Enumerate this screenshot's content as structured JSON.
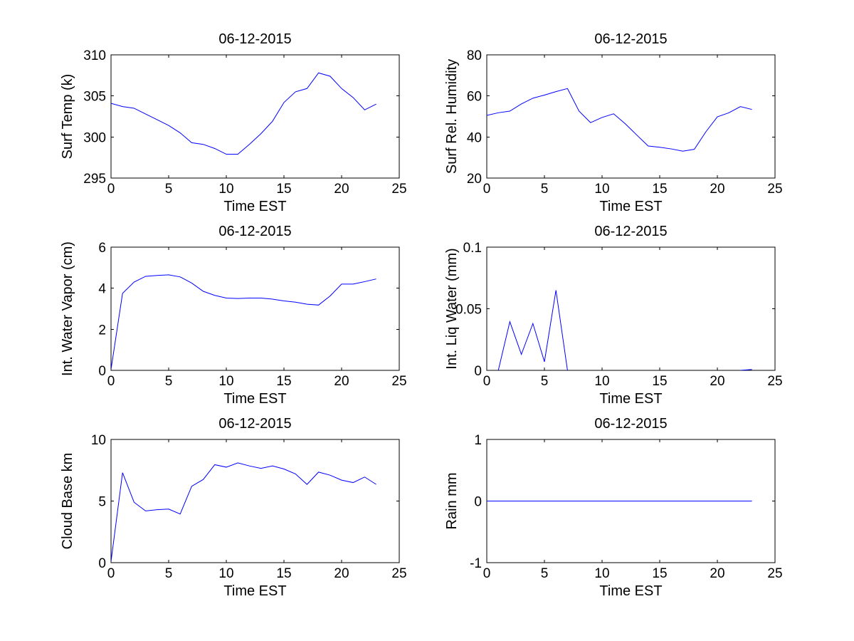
{
  "figure": {
    "background": "#ffffff",
    "line_color": "#0000ff",
    "axes_color": "#000000"
  },
  "chart_data": [
    {
      "id": "surf-temp",
      "type": "line",
      "title": "06-12-2015",
      "xlabel": "Time EST",
      "ylabel": "Surf Temp (k)",
      "xlim": [
        0,
        25
      ],
      "ylim": [
        295,
        310
      ],
      "xticks": [
        0,
        5,
        10,
        15,
        20,
        25
      ],
      "yticks": [
        295,
        300,
        305,
        310
      ],
      "ytick_labels": [
        "295",
        "300",
        "305",
        "310"
      ],
      "grid": false,
      "x": [
        0,
        1,
        2,
        3,
        4,
        5,
        6,
        7,
        8,
        9,
        10,
        11,
        12,
        13,
        14,
        15,
        16,
        17,
        18,
        19,
        20,
        21,
        22,
        23
      ],
      "y": [
        304.1,
        303.7,
        303.5,
        302.8,
        302.1,
        301.4,
        300.5,
        299.3,
        299.1,
        298.6,
        297.9,
        297.9,
        299.1,
        300.4,
        301.9,
        304.2,
        305.5,
        305.9,
        307.8,
        307.4,
        305.9,
        304.8,
        303.3,
        304.0
      ]
    },
    {
      "id": "surf-rel-humidity",
      "type": "line",
      "title": "06-12-2015",
      "xlabel": "Time EST",
      "ylabel": "Surf Rel. Humidity",
      "xlim": [
        0,
        25
      ],
      "ylim": [
        20,
        80
      ],
      "xticks": [
        0,
        5,
        10,
        15,
        20,
        25
      ],
      "yticks": [
        20,
        40,
        60,
        80
      ],
      "ytick_labels": [
        "20",
        "40",
        "60",
        "80"
      ],
      "grid": false,
      "x": [
        0,
        1,
        2,
        3,
        4,
        5,
        6,
        7,
        8,
        9,
        10,
        11,
        12,
        13,
        14,
        15,
        16,
        17,
        18,
        19,
        20,
        21,
        22,
        23
      ],
      "y": [
        50.5,
        51.8,
        52.6,
        56.1,
        58.9,
        60.4,
        62.1,
        63.6,
        52.6,
        47.0,
        49.5,
        51.3,
        46.5,
        41.0,
        35.6,
        35.0,
        34.2,
        33.1,
        34.0,
        42.5,
        49.8,
        51.8,
        54.8,
        53.4
      ]
    },
    {
      "id": "int-water-vapor",
      "type": "line",
      "title": "06-12-2015",
      "xlabel": "Time EST",
      "ylabel": "Int. Water Vapor (cm)",
      "xlim": [
        0,
        25
      ],
      "ylim": [
        0,
        6
      ],
      "xticks": [
        0,
        5,
        10,
        15,
        20,
        25
      ],
      "yticks": [
        0,
        2,
        4,
        6
      ],
      "ytick_labels": [
        "0",
        "2",
        "4",
        "6"
      ],
      "grid": false,
      "x": [
        0,
        1,
        2,
        3,
        4,
        5,
        6,
        7,
        8,
        9,
        10,
        11,
        12,
        13,
        14,
        15,
        16,
        17,
        18,
        19,
        20,
        21,
        22,
        23
      ],
      "y": [
        0.05,
        3.75,
        4.3,
        4.58,
        4.62,
        4.65,
        4.55,
        4.25,
        3.85,
        3.65,
        3.52,
        3.5,
        3.52,
        3.52,
        3.47,
        3.38,
        3.32,
        3.22,
        3.18,
        3.62,
        4.2,
        4.2,
        4.32,
        4.45
      ]
    },
    {
      "id": "int-liq-water",
      "type": "line",
      "title": "06-12-2015",
      "xlabel": "Time EST",
      "ylabel": "Int. Liq Water (mm)",
      "xlim": [
        0,
        25
      ],
      "ylim": [
        0,
        0.1
      ],
      "xticks": [
        0,
        5,
        10,
        15,
        20,
        25
      ],
      "yticks": [
        0,
        0.05,
        0.1
      ],
      "ytick_labels": [
        "0",
        "0.05",
        "0.1"
      ],
      "grid": false,
      "x": [
        0,
        1,
        2,
        3,
        4,
        5,
        6,
        7,
        8,
        9,
        10,
        11,
        12,
        13,
        14,
        15,
        16,
        17,
        18,
        19,
        20,
        21,
        22,
        23
      ],
      "y": [
        -0.02,
        0.0,
        0.0395,
        0.013,
        0.038,
        0.007,
        0.065,
        0.0,
        -0.02,
        -0.02,
        -0.02,
        -0.02,
        -0.02,
        -0.02,
        -0.02,
        -0.02,
        -0.02,
        -0.02,
        -0.02,
        -0.02,
        -0.02,
        -0.02,
        0.0,
        0.0007
      ]
    },
    {
      "id": "cloud-base",
      "type": "line",
      "title": "06-12-2015",
      "xlabel": "Time EST",
      "ylabel": "Cloud Base km",
      "xlim": [
        0,
        25
      ],
      "ylim": [
        0,
        10
      ],
      "xticks": [
        0,
        5,
        10,
        15,
        20,
        25
      ],
      "yticks": [
        0,
        5,
        10
      ],
      "ytick_labels": [
        "0",
        "5",
        "10"
      ],
      "grid": false,
      "x": [
        0,
        1,
        2,
        3,
        4,
        5,
        6,
        7,
        8,
        9,
        10,
        11,
        12,
        13,
        14,
        15,
        16,
        17,
        18,
        19,
        20,
        21,
        22,
        23
      ],
      "y": [
        0.1,
        7.3,
        4.9,
        4.2,
        4.3,
        4.35,
        3.95,
        6.2,
        6.75,
        7.95,
        7.75,
        8.1,
        7.85,
        7.65,
        7.85,
        7.6,
        7.2,
        6.35,
        7.35,
        7.1,
        6.7,
        6.5,
        6.95,
        6.35
      ]
    },
    {
      "id": "rain",
      "type": "line",
      "title": "06-12-2015",
      "xlabel": "Time EST",
      "ylabel": "Rain mm",
      "xlim": [
        0,
        25
      ],
      "ylim": [
        -1,
        1
      ],
      "xticks": [
        0,
        5,
        10,
        15,
        20,
        25
      ],
      "yticks": [
        -1,
        0,
        1
      ],
      "ytick_labels": [
        "-1",
        "0",
        "1"
      ],
      "grid": false,
      "x": [
        0,
        1,
        2,
        3,
        4,
        5,
        6,
        7,
        8,
        9,
        10,
        11,
        12,
        13,
        14,
        15,
        16,
        17,
        18,
        19,
        20,
        21,
        22,
        23
      ],
      "y": [
        0,
        0,
        0,
        0,
        0,
        0,
        0,
        0,
        0,
        0,
        0,
        0,
        0,
        0,
        0,
        0,
        0,
        0,
        0,
        0,
        0,
        0,
        0,
        0
      ]
    }
  ]
}
